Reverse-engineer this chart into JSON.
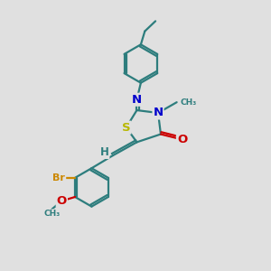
{
  "background_color": "#e0e0e0",
  "bond_color": "#2d7d7d",
  "bond_lw": 1.6,
  "atom_colors": {
    "S": "#b8b800",
    "N": "#0000cc",
    "O": "#cc0000",
    "Br": "#cc8800",
    "H": "#2d7d7d",
    "C": "#2d7d7d"
  },
  "fs": 8.5
}
